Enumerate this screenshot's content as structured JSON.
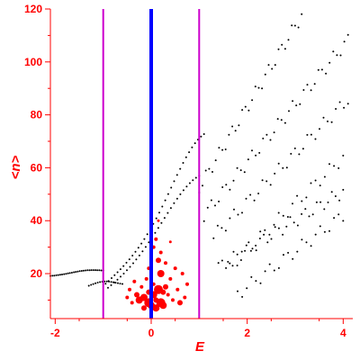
{
  "chart_data": {
    "type": "scatter",
    "xlabel": "E",
    "ylabel": "<n>",
    "xlim": [
      -2.1,
      4.2
    ],
    "ylim": [
      3,
      120
    ],
    "xticks": [
      -2,
      0,
      2,
      4
    ],
    "yticks": [
      20,
      40,
      60,
      80,
      100,
      120
    ],
    "grid": false,
    "colors": {
      "axis": "#ff0000",
      "points": "#000000",
      "highlight": "#ff0000",
      "center_line": "#0000ff",
      "side_lines": "#cc00cc"
    },
    "vertical_lines": [
      {
        "x": -1,
        "color": "#cc00cc"
      },
      {
        "x": 0,
        "color": "#0000ff"
      },
      {
        "x": 1,
        "color": "#cc00cc"
      }
    ],
    "dot_curves": [
      {
        "x0": -2.1,
        "x1": -1.0,
        "a": 19,
        "b": 3,
        "c": -1.3,
        "w": 0.5,
        "n": 28
      },
      {
        "x0": -1.3,
        "x1": -0.6,
        "a": 14,
        "b": 5,
        "c": -1.0,
        "w": 0.4,
        "n": 16
      },
      {
        "x0": -0.95,
        "x1": 1.1,
        "a": 16,
        "b": 48,
        "c": 1.05,
        "w": 0.9,
        "n": 34
      },
      {
        "x0": -0.9,
        "x1": 1.0,
        "a": 14,
        "b": 38,
        "c": 0.95,
        "w": 1.0,
        "n": 30
      },
      {
        "x0": 1.0,
        "x1": 4.1,
        "lin": [
          22,
          30.5
        ],
        "n": 46
      },
      {
        "x0": 1.1,
        "x1": 4.1,
        "lin": [
          18,
          22
        ],
        "n": 40
      },
      {
        "x0": 1.3,
        "x1": 4.1,
        "lin": [
          10,
          18.5
        ],
        "n": 34
      },
      {
        "x0": 1.4,
        "x1": 4.0,
        "lin": [
          7,
          11
        ],
        "n": 34
      },
      {
        "x0": 1.6,
        "x1": 4.0,
        "lin": [
          -6,
          17.5
        ],
        "n": 26
      },
      {
        "x0": 1.8,
        "x1": 4.0,
        "lin": [
          -12,
          13.5
        ],
        "n": 24
      }
    ],
    "red_points": [
      [
        -0.25,
        10,
        4
      ],
      [
        -0.15,
        11,
        4
      ],
      [
        -0.05,
        9,
        5
      ],
      [
        0.0,
        8,
        4
      ],
      [
        0.05,
        12,
        4
      ],
      [
        0.1,
        10,
        3
      ],
      [
        0.15,
        14,
        5
      ],
      [
        0.2,
        20,
        4
      ],
      [
        0.15,
        25,
        3
      ],
      [
        0.2,
        9,
        5
      ],
      [
        0.25,
        8,
        4
      ],
      [
        -0.3,
        12,
        3
      ],
      [
        -0.2,
        15,
        2
      ],
      [
        -0.1,
        18,
        2
      ],
      [
        -0.05,
        22,
        2
      ],
      [
        0.05,
        30,
        2
      ],
      [
        0.1,
        33,
        2
      ],
      [
        0.3,
        15,
        3
      ],
      [
        0.35,
        12,
        2
      ],
      [
        0.4,
        18,
        2
      ],
      [
        0.45,
        10,
        2
      ],
      [
        0.5,
        22,
        2
      ],
      [
        0.55,
        14,
        2
      ],
      [
        0.6,
        9,
        3
      ],
      [
        0.65,
        20,
        2
      ],
      [
        0.7,
        11,
        2
      ],
      [
        0.75,
        16,
        2
      ],
      [
        -0.4,
        9,
        2
      ],
      [
        -0.45,
        14,
        2
      ],
      [
        -0.5,
        11,
        2
      ],
      [
        -0.35,
        17,
        2
      ],
      [
        0.15,
        40,
        1.5
      ],
      [
        0.2,
        28,
        2
      ],
      [
        0.3,
        24,
        2
      ],
      [
        0.4,
        32,
        1.5
      ],
      [
        -0.15,
        7,
        3
      ],
      [
        -0.05,
        13,
        3
      ],
      [
        0.05,
        16,
        2
      ],
      [
        0.1,
        7,
        4
      ],
      [
        0.25,
        13,
        3
      ]
    ]
  }
}
